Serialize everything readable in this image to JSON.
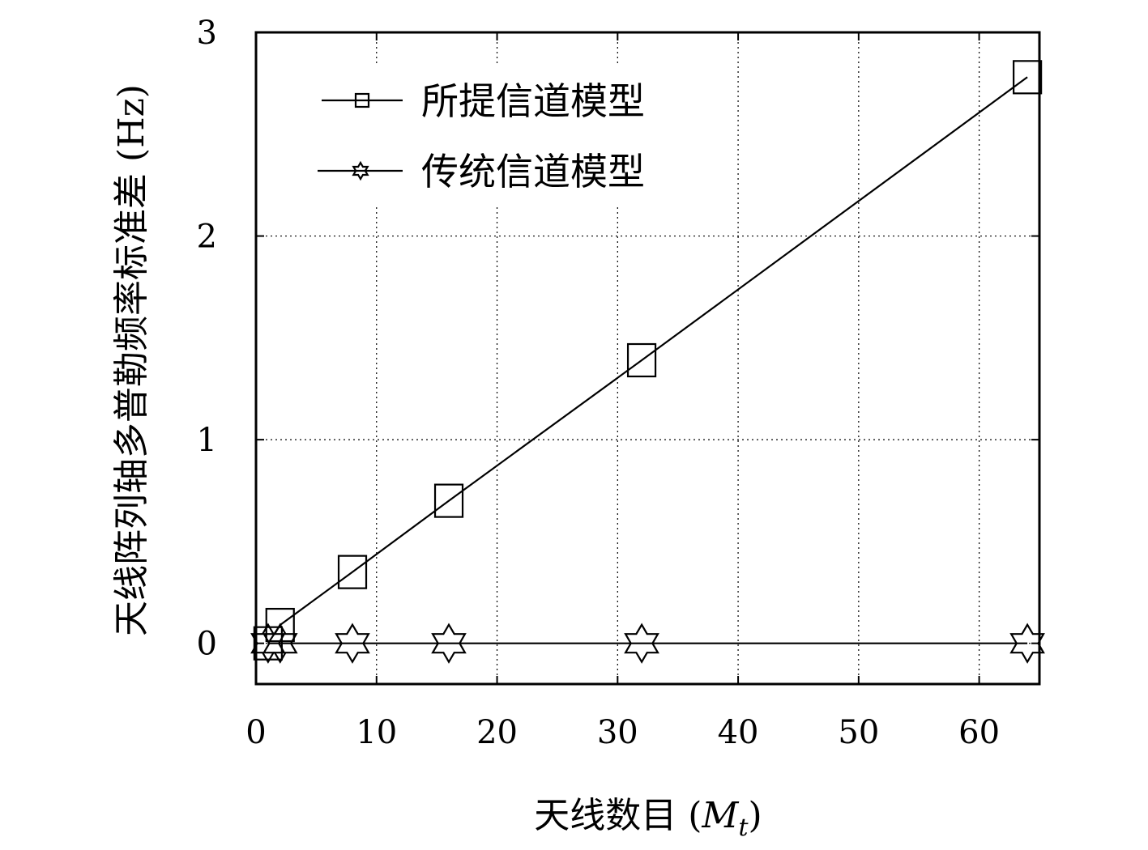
{
  "chart_data": {
    "type": "line",
    "xlabel": "天线数目 (M_t)",
    "xlabel_main": "天线数目 (",
    "xlabel_var": "M",
    "xlabel_sub": "t",
    "xlabel_close": ")",
    "ylabel": "天线阵列轴多普勒频率标准差 (Hz)",
    "xlim": [
      0,
      65
    ],
    "ylim": [
      -0.2,
      3
    ],
    "xticks": [
      0,
      10,
      20,
      30,
      40,
      50,
      60
    ],
    "yticks": [
      0,
      1,
      2,
      3
    ],
    "grid": true,
    "legend_position": "top-left",
    "x": [
      1,
      2,
      8,
      16,
      32,
      64
    ],
    "series": [
      {
        "name": "所提信道模型",
        "marker": "square",
        "values": [
          0.0,
          0.09,
          0.35,
          0.7,
          1.39,
          2.78
        ]
      },
      {
        "name": "传统信道模型",
        "marker": "star",
        "values": [
          0,
          0,
          0,
          0,
          0,
          0
        ]
      }
    ]
  }
}
